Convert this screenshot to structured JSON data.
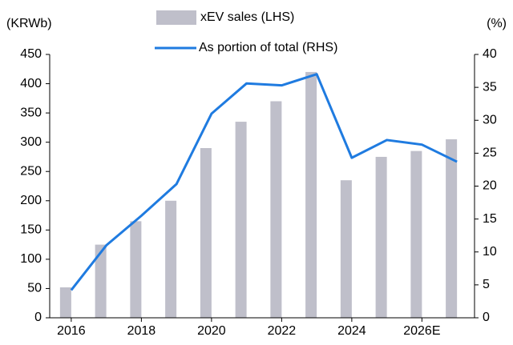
{
  "chart_data": {
    "type": "bar_line",
    "y_label": "(KRWb)",
    "y2_label": "(%)",
    "categories": [
      "2016",
      null,
      "2018",
      null,
      "2020",
      null,
      "2022",
      null,
      "2024",
      null,
      "2026E",
      null
    ],
    "series": [
      {
        "name": "xEV sales (LHS)",
        "color": "#bfbfca",
        "values": [
          52,
          125,
          165,
          200,
          290,
          335,
          370,
          420,
          235,
          275,
          285,
          305
        ]
      },
      {
        "name": "As portion of total (RHS)",
        "color": "#1f7be0",
        "axis": "y2",
        "values": [
          4.2,
          11,
          15.5,
          20.3,
          31,
          35.6,
          35.3,
          37,
          24.3,
          27,
          26.3,
          23.7
        ]
      }
    ],
    "ylim": [
      0,
      450
    ],
    "yticks": [
      0,
      50,
      100,
      150,
      200,
      250,
      300,
      350,
      400,
      450
    ],
    "y2lim": [
      0,
      40
    ],
    "y2ticks": [
      0,
      5,
      10,
      15,
      20,
      25,
      30,
      35,
      40
    ],
    "grid": false
  }
}
